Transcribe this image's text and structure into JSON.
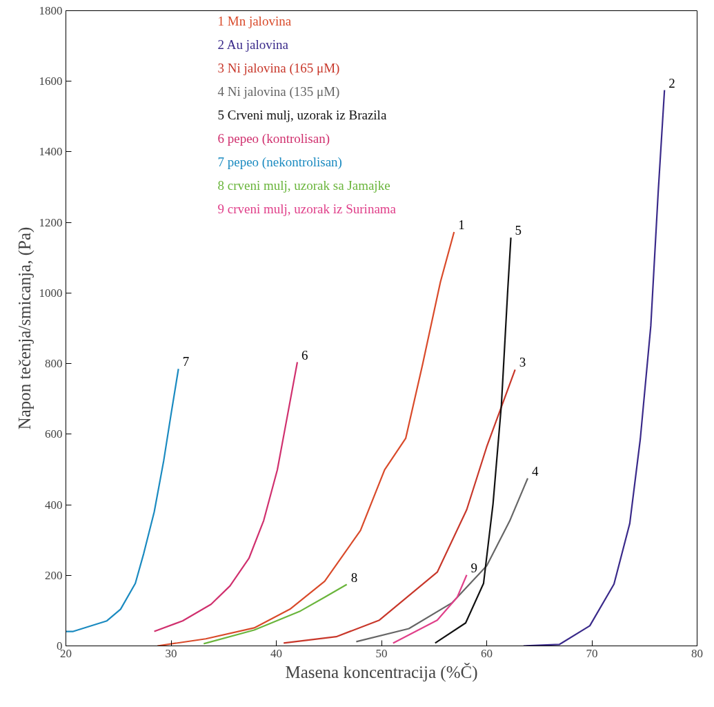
{
  "chart_data": {
    "type": "line",
    "xlabel": "Masena koncentracija (%Č)",
    "ylabel": "Napon tečenja/smicanja, (Pa)",
    "xlim": [
      20,
      80
    ],
    "ylim": [
      0,
      1800
    ],
    "xticks": [
      20,
      30,
      40,
      50,
      60,
      70,
      80
    ],
    "yticks": [
      0,
      200,
      400,
      600,
      800,
      1000,
      1200,
      1400,
      1600,
      1800
    ],
    "grid": false,
    "legend": "top left",
    "marker": "none",
    "line_style": "solid",
    "series": [
      {
        "name": "1 Mn jalovina",
        "color": "#d94a2a",
        "x": [
          28.7,
          33.3,
          37.9,
          41.3,
          44.6,
          48.0,
          50.3,
          52.3,
          53.9,
          55.6,
          56.9
        ],
        "values": [
          0,
          20,
          51,
          104,
          183,
          327,
          499,
          588,
          797,
          1031,
          1173
        ]
      },
      {
        "name": "2 Au jalovina",
        "color": "#3a2a8a",
        "x": [
          63.5,
          66.9,
          69.8,
          72.1,
          73.6,
          74.6,
          75.6,
          76.3,
          76.9
        ],
        "values": [
          0,
          4,
          57,
          175,
          347,
          586,
          907,
          1285,
          1575
        ]
      },
      {
        "name": "3 Ni jalovina (165 μM)",
        "color": "#c8372a",
        "x": [
          40.7,
          45.7,
          49.8,
          55.3,
          58.1,
          60.0,
          62.7
        ],
        "values": [
          8,
          26,
          73,
          209,
          386,
          564,
          783
        ]
      },
      {
        "name": "4 Ni jalovina (135 μM)",
        "color": "#666666",
        "x": [
          47.6,
          52.6,
          56.7,
          60.0,
          62.2,
          63.9
        ],
        "values": [
          12,
          49,
          122,
          227,
          355,
          475
        ]
      },
      {
        "name": "5 Crveni mulj, uzorak iz Brazila",
        "color": "#111111",
        "x": [
          55.1,
          58.0,
          59.7,
          60.6,
          61.4,
          62.0,
          62.3
        ],
        "values": [
          8,
          65,
          177,
          402,
          684,
          1008,
          1157
        ]
      },
      {
        "name": "6 pepeo (kontrolisan)",
        "color": "#d0306e",
        "x": [
          28.4,
          31.1,
          33.8,
          35.6,
          37.4,
          38.8,
          40.1,
          41.0,
          42.0
        ],
        "values": [
          41,
          71,
          118,
          170,
          248,
          355,
          499,
          643,
          804
        ]
      },
      {
        "name": "7 pepeo (nekontrolisan)",
        "color": "#1a8ac0",
        "x": [
          20.0,
          20.7,
          23.9,
          25.2,
          26.6,
          27.4,
          28.4,
          29.3,
          30.0,
          30.7
        ],
        "values": [
          41,
          41,
          71,
          104,
          177,
          262,
          380,
          525,
          657,
          785
        ]
      },
      {
        "name": "8 crveni mulj, uzorak sa Jamajke",
        "color": "#6ab53c",
        "x": [
          33.1,
          37.9,
          42.3,
          44.6,
          46.7
        ],
        "values": [
          6,
          45,
          99,
          138,
          174
        ]
      },
      {
        "name": "9 crveni mulj, uzorak iz Surinama",
        "color": "#e0408a",
        "x": [
          51.1,
          55.3,
          57.2,
          58.1
        ],
        "values": [
          8,
          73,
          138,
          201
        ]
      }
    ],
    "annotations": [
      {
        "text": "1",
        "x": 56.9,
        "y": 1173
      },
      {
        "text": "2",
        "x": 76.9,
        "y": 1575
      },
      {
        "text": "3",
        "x": 62.7,
        "y": 783
      },
      {
        "text": "4",
        "x": 63.9,
        "y": 475
      },
      {
        "text": "5",
        "x": 62.3,
        "y": 1157
      },
      {
        "text": "6",
        "x": 42.0,
        "y": 804
      },
      {
        "text": "7",
        "x": 30.7,
        "y": 785
      },
      {
        "text": "8",
        "x": 46.7,
        "y": 174
      },
      {
        "text": "9",
        "x": 58.1,
        "y": 201
      }
    ]
  }
}
